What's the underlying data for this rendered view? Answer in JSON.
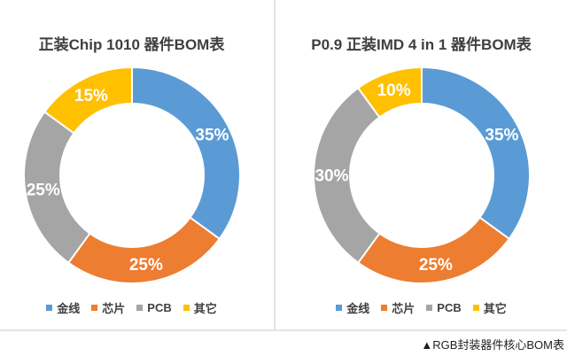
{
  "caption": "▲RGB封装器件核心BOM表",
  "chart_data": [
    {
      "type": "pie",
      "subtype": "donut",
      "title": "正装Chip 1010 器件BOM表",
      "categories": [
        "金线",
        "芯片",
        "PCB",
        "其它"
      ],
      "values": [
        35,
        25,
        25,
        15
      ],
      "data_labels": [
        "35%",
        "25%",
        "25%",
        "15%"
      ],
      "unit": "%",
      "colors": [
        "#5B9BD5",
        "#ED7D31",
        "#A5A5A5",
        "#FFC000"
      ],
      "start_angle_deg": 0,
      "direction": "clockwise",
      "donut_hole_ratio": 0.66,
      "legend_position": "bottom"
    },
    {
      "type": "pie",
      "subtype": "donut",
      "title": "P0.9 正装IMD 4 in 1 器件BOM表",
      "categories": [
        "金线",
        "芯片",
        "PCB",
        "其它"
      ],
      "values": [
        35,
        25,
        30,
        10
      ],
      "data_labels": [
        "35%",
        "25%",
        "30%",
        "10%"
      ],
      "unit": "%",
      "colors": [
        "#5B9BD5",
        "#ED7D31",
        "#A5A5A5",
        "#FFC000"
      ],
      "start_angle_deg": 0,
      "direction": "clockwise",
      "donut_hole_ratio": 0.66,
      "legend_position": "bottom"
    }
  ]
}
